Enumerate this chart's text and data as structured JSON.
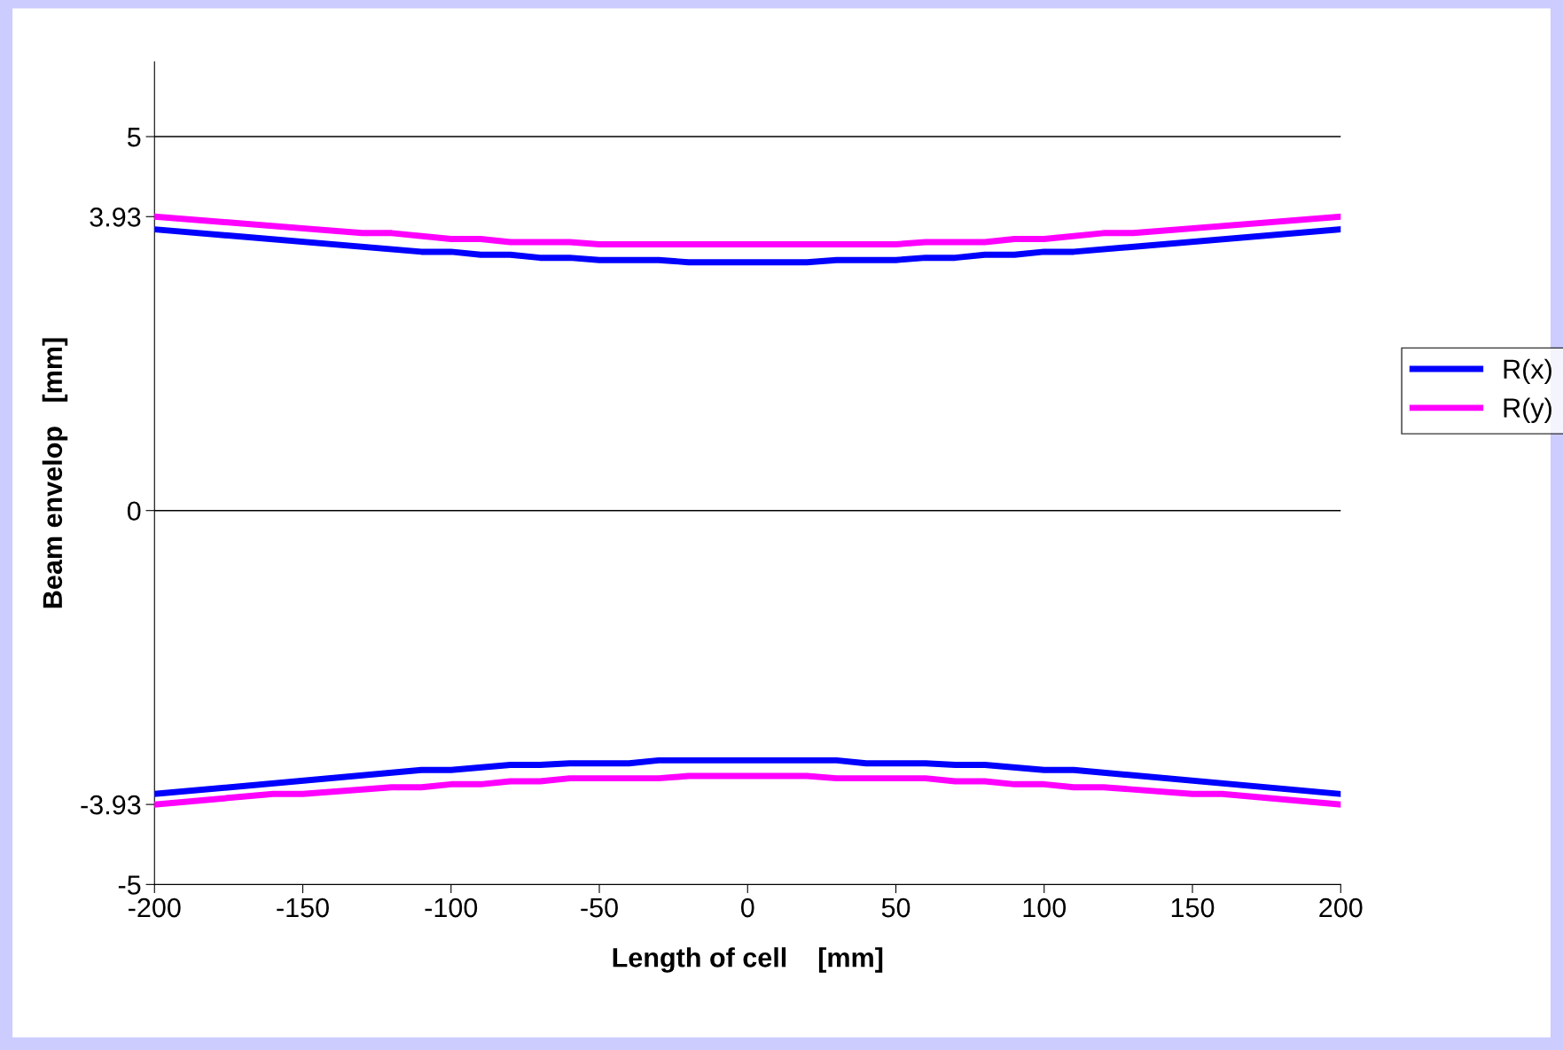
{
  "chart_data": {
    "type": "line",
    "xlabel": "Length of cell    [mm]",
    "ylabel": "Beam envelop   [mm]",
    "xlim": [
      -200,
      200
    ],
    "xticks": [
      -200,
      -150,
      -100,
      -50,
      0,
      50,
      100,
      150,
      200
    ],
    "ylim": [
      -5,
      6
    ],
    "yticks": [
      -5,
      -3.93,
      0,
      3.93,
      5
    ],
    "grid": false,
    "legend": "right",
    "line_style": "solid",
    "marker": "none",
    "ref_lines": [
      {
        "axis": "y",
        "value": 5,
        "color": "#000000"
      },
      {
        "axis": "y",
        "value": 0,
        "color": "#000000"
      }
    ],
    "series": [
      {
        "name": "R(x)",
        "color": "#0000ff",
        "x": [
          -200,
          -110,
          -100,
          -90,
          -80,
          -70,
          -60,
          -50,
          -30,
          -20,
          20,
          30,
          50,
          60,
          70,
          80,
          90,
          100,
          110,
          200
        ],
        "values": [
          3.76,
          3.46,
          3.46,
          3.42,
          3.42,
          3.38,
          3.38,
          3.35,
          3.35,
          3.32,
          3.32,
          3.35,
          3.35,
          3.38,
          3.38,
          3.42,
          3.42,
          3.46,
          3.46,
          3.76
        ]
      },
      {
        "name": "R(y)",
        "color": "#ff00ff",
        "x": [
          -200,
          -130,
          -120,
          -100,
          -90,
          -80,
          -60,
          -50,
          50,
          60,
          80,
          90,
          100,
          120,
          130,
          200
        ],
        "values": [
          3.93,
          3.71,
          3.71,
          3.63,
          3.63,
          3.59,
          3.59,
          3.56,
          3.56,
          3.59,
          3.59,
          3.63,
          3.63,
          3.71,
          3.71,
          3.93
        ]
      },
      {
        "color": "#0000ff",
        "x": [
          -200,
          -110,
          -100,
          -80,
          -70,
          -60,
          -40,
          -30,
          30,
          40,
          60,
          70,
          80,
          100,
          110,
          200
        ],
        "values": [
          -3.79,
          -3.47,
          -3.47,
          -3.4,
          -3.4,
          -3.38,
          -3.38,
          -3.34,
          -3.34,
          -3.38,
          -3.38,
          -3.4,
          -3.4,
          -3.47,
          -3.47,
          -3.79
        ]
      },
      {
        "color": "#ff00ff",
        "x": [
          -200,
          -160,
          -150,
          -120,
          -110,
          -100,
          -90,
          -80,
          -70,
          -60,
          -30,
          -20,
          20,
          30,
          60,
          70,
          80,
          90,
          100,
          110,
          120,
          150,
          160,
          200
        ],
        "values": [
          -3.93,
          -3.79,
          -3.79,
          -3.7,
          -3.7,
          -3.66,
          -3.66,
          -3.62,
          -3.62,
          -3.58,
          -3.58,
          -3.55,
          -3.55,
          -3.58,
          -3.58,
          -3.62,
          -3.62,
          -3.66,
          -3.66,
          -3.7,
          -3.7,
          -3.79,
          -3.79,
          -3.93
        ]
      }
    ]
  }
}
